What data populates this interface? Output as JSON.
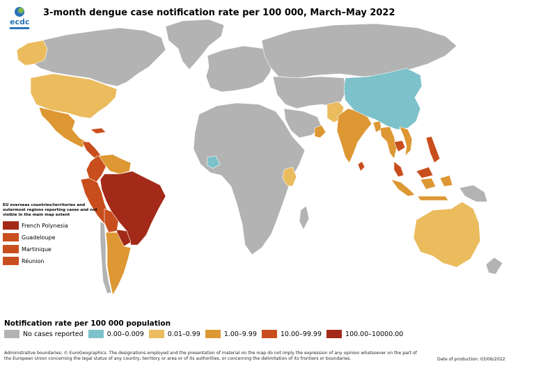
{
  "title": "3-month dengue case notification rate per 100 000, March–May 2022",
  "logo": {
    "text": "ecdc"
  },
  "colors": {
    "no_data": "#b3b3b3",
    "c0": "#7dc1ca",
    "c1": "#ebbc5e",
    "c2": "#dd9733",
    "c3": "#c94e1d",
    "c4": "#a32a18",
    "border": "#ffffff"
  },
  "overseas": {
    "title": "EU overseas countries/territories and outermost regions reporting cases and not visible in the main map extent",
    "items": [
      {
        "label": "French Polynesia",
        "class": "c4"
      },
      {
        "label": "Guadeloupe",
        "class": "c3"
      },
      {
        "label": "Martinique",
        "class": "c3"
      },
      {
        "label": "Réunion",
        "class": "c3"
      }
    ]
  },
  "legend": {
    "title": "Notification rate per 100 000 population",
    "items": [
      {
        "label": "No cases reported",
        "class": "no_data"
      },
      {
        "label": "0.00–0.009",
        "class": "c0"
      },
      {
        "label": "0.01–0.99",
        "class": "c1"
      },
      {
        "label": "1.00–9.99",
        "class": "c2"
      },
      {
        "label": "10.00–99.99",
        "class": "c3"
      },
      {
        "label": "100.00–10000.00",
        "class": "c4"
      }
    ]
  },
  "regions": [
    {
      "name": "North America",
      "class": "no_data"
    },
    {
      "name": "Greenland",
      "class": "no_data"
    },
    {
      "name": "Alaska",
      "class": "c1"
    },
    {
      "name": "United States",
      "class": "c1"
    },
    {
      "name": "Mexico",
      "class": "c2"
    },
    {
      "name": "Central America",
      "class": "c3"
    },
    {
      "name": "Colombia",
      "class": "c3"
    },
    {
      "name": "Venezuela",
      "class": "c2"
    },
    {
      "name": "Peru",
      "class": "c3"
    },
    {
      "name": "Brazil",
      "class": "c4"
    },
    {
      "name": "Bolivia",
      "class": "c3"
    },
    {
      "name": "Paraguay",
      "class": "c4"
    },
    {
      "name": "Argentina",
      "class": "c2"
    },
    {
      "name": "Chile",
      "class": "no_data"
    },
    {
      "name": "Europe",
      "class": "no_data"
    },
    {
      "name": "Africa",
      "class": "no_data"
    },
    {
      "name": "Kenya",
      "class": "c1"
    },
    {
      "name": "Côte d'Ivoire",
      "class": "c0"
    },
    {
      "name": "Russia",
      "class": "no_data"
    },
    {
      "name": "China",
      "class": "c0"
    },
    {
      "name": "India",
      "class": "c2"
    },
    {
      "name": "Pakistan",
      "class": "c1"
    },
    {
      "name": "Oman",
      "class": "c2"
    },
    {
      "name": "Sri Lanka",
      "class": "c3"
    },
    {
      "name": "Bangladesh",
      "class": "c2"
    },
    {
      "name": "Thailand",
      "class": "c2"
    },
    {
      "name": "Cambodia",
      "class": "c3"
    },
    {
      "name": "Vietnam",
      "class": "c2"
    },
    {
      "name": "Malaysia",
      "class": "c3"
    },
    {
      "name": "Philippines",
      "class": "c3"
    },
    {
      "name": "Indonesia",
      "class": "c2"
    },
    {
      "name": "New Guinea",
      "class": "no_data"
    },
    {
      "name": "Australia",
      "class": "c1"
    },
    {
      "name": "New Zealand",
      "class": "no_data"
    }
  ],
  "disclaimer": "Administrative boundaries: © EuroGeographics. The designations employed and the presentation of material on the map do not imply the expression of any opinion whatsoever on the part of the European Union concerning the legal status of any country, territory or area or of its authorities, or concerning the delimitation of its frontiers or boundaries.",
  "production_date": "Date of production: 03/06/2022"
}
